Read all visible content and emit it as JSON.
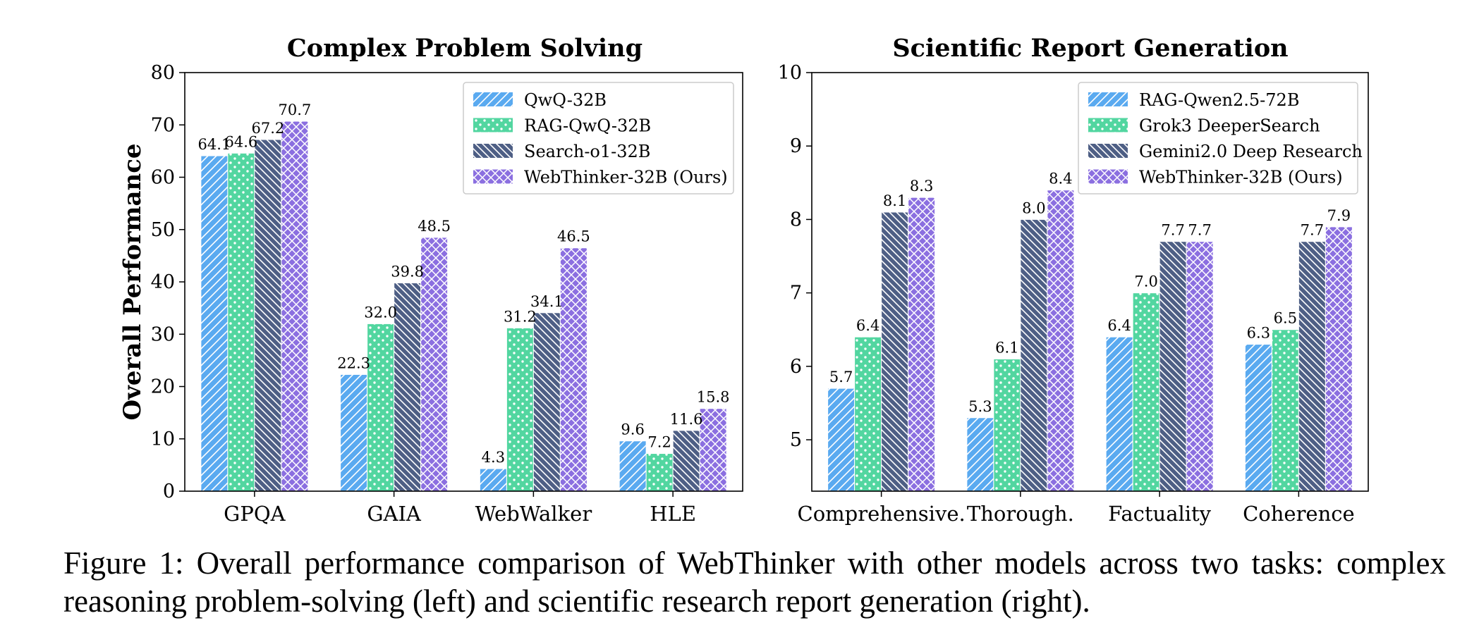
{
  "chart_data": [
    {
      "type": "bar",
      "title": "Complex Problem Solving",
      "ylabel": "Overall Performance",
      "xlabel": "",
      "ylim": [
        0,
        80
      ],
      "yticks": [
        0,
        10,
        20,
        30,
        40,
        50,
        60,
        70,
        80
      ],
      "categories": [
        "GPQA",
        "GAIA",
        "WebWalker",
        "HLE"
      ],
      "legend_position": "top-right",
      "grid": false,
      "series": [
        {
          "name": "QwQ-32B",
          "values": [
            64.1,
            22.3,
            4.3,
            9.6
          ],
          "color": "#5aaaf0",
          "pattern": "diagonal-hatch"
        },
        {
          "name": "RAG-QwQ-32B",
          "values": [
            64.6,
            32.0,
            31.2,
            7.2
          ],
          "color": "#52d6a0",
          "pattern": "dots"
        },
        {
          "name": "Search-o1-32B",
          "values": [
            67.2,
            39.8,
            34.1,
            11.6
          ],
          "color": "#4e5f85",
          "pattern": "back-diagonal-hatch"
        },
        {
          "name": "WebThinker-32B (Ours)",
          "values": [
            70.7,
            48.5,
            46.5,
            15.8
          ],
          "color": "#8b6fe0",
          "pattern": "cross-hatch"
        }
      ]
    },
    {
      "type": "bar",
      "title": "Scientific Report Generation",
      "ylabel": "",
      "xlabel": "",
      "ylim": [
        4.3,
        10
      ],
      "yticks": [
        5,
        6,
        7,
        8,
        9,
        10
      ],
      "categories": [
        "Comprehensive.",
        "Thorough.",
        "Factuality",
        "Coherence"
      ],
      "legend_position": "top-right",
      "grid": false,
      "series": [
        {
          "name": "RAG-Qwen2.5-72B",
          "values": [
            5.7,
            5.3,
            6.4,
            6.3
          ],
          "color": "#5aaaf0",
          "pattern": "diagonal-hatch"
        },
        {
          "name": "Grok3 DeeperSearch",
          "values": [
            6.4,
            6.1,
            7.0,
            6.5
          ],
          "color": "#52d6a0",
          "pattern": "dots"
        },
        {
          "name": "Gemini2.0 Deep Research",
          "values": [
            8.1,
            8.0,
            7.7,
            7.7
          ],
          "color": "#4e5f85",
          "pattern": "back-diagonal-hatch"
        },
        {
          "name": "WebThinker-32B (Ours)",
          "values": [
            8.3,
            8.4,
            7.7,
            7.9
          ],
          "color": "#8b6fe0",
          "pattern": "cross-hatch"
        }
      ]
    }
  ],
  "caption": {
    "text": "Figure 1:  Overall performance comparison of WebThinker with other models across two tasks: complex reasoning problem-solving (left) and scientific research report generation (right)."
  }
}
